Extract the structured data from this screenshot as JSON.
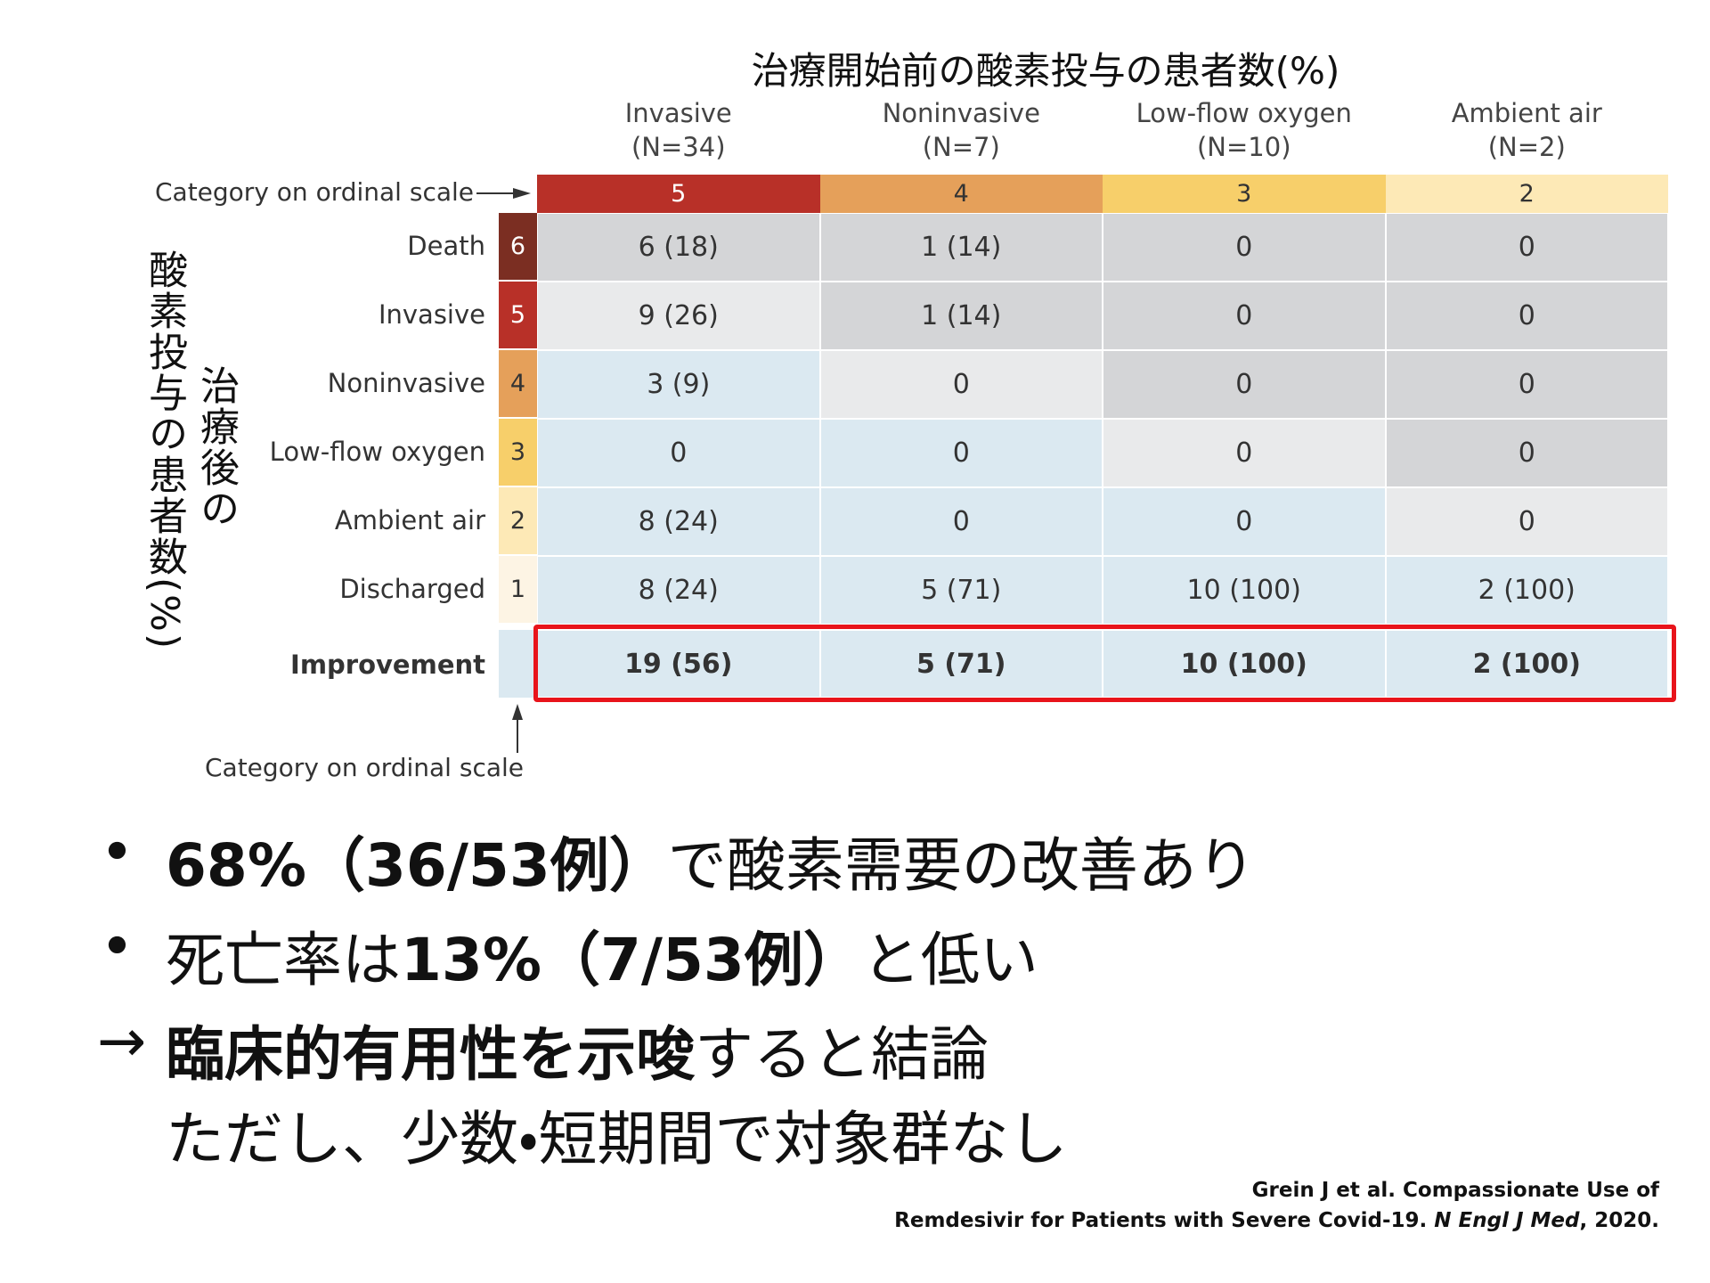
{
  "table": {
    "title": "治療開始前の酸素投与の患者数(%)",
    "column_caption": "Category on ordinal scale",
    "columns": [
      {
        "name": "Invasive",
        "n": "(N=34)",
        "scale": "5"
      },
      {
        "name": "Noninvasive",
        "n": "(N=7)",
        "scale": "4"
      },
      {
        "name": "Low-flow oxygen",
        "n": "(N=10)",
        "scale": "3"
      },
      {
        "name": "Ambient air",
        "n": "(N=2)",
        "scale": "2"
      }
    ],
    "row_title": [
      "酸素投与の患者数(%)",
      "治療後の"
    ],
    "rows": [
      {
        "label": "Death",
        "scale": "6",
        "cells": [
          "6 (18)",
          "1 (14)",
          "0",
          "0"
        ]
      },
      {
        "label": "Invasive",
        "scale": "5",
        "cells": [
          "9 (26)",
          "1 (14)",
          "0",
          "0"
        ]
      },
      {
        "label": "Noninvasive",
        "scale": "4",
        "cells": [
          "3 (9)",
          "0",
          "0",
          "0"
        ]
      },
      {
        "label": "Low-flow oxygen",
        "scale": "3",
        "cells": [
          "0",
          "0",
          "0",
          "0"
        ]
      },
      {
        "label": "Ambient air",
        "scale": "2",
        "cells": [
          "8 (24)",
          "0",
          "0",
          "0"
        ]
      },
      {
        "label": "Discharged",
        "scale": "1",
        "cells": [
          "8 (24)",
          "5 (71)",
          "10 (100)",
          "2 (100)"
        ]
      }
    ],
    "improvement": {
      "label": "Improvement",
      "cells": [
        "19 (56)",
        "5 (71)",
        "10 (100)",
        "2 (100)"
      ]
    },
    "row_caption": "Category on ordinal scale"
  },
  "bullets": [
    {
      "marker": "•",
      "segments": [
        {
          "text": "68%（36/53例）",
          "bold": true
        },
        {
          "text": "で酸素需要の改善あり"
        }
      ]
    },
    {
      "marker": "•",
      "segments": [
        {
          "text": "死亡率は"
        },
        {
          "text": "13%（7/53例）",
          "bold": true
        },
        {
          "text": "と低い"
        }
      ]
    },
    {
      "marker": "→",
      "segments": [
        {
          "text": "臨床的有用性を示唆",
          "bold": true
        },
        {
          "text": "すると結論"
        }
      ]
    },
    {
      "segments": [
        {
          "text": "ただし、少数・短期間で対象群なし"
        }
      ]
    }
  ],
  "citation": {
    "lines": [
      [
        {
          "text": "Grein J et al. Compassionate Use of"
        }
      ],
      [
        {
          "text": "Remdesivir for Patients with Severe Covid-19. "
        },
        {
          "text": "N Engl J Med",
          "italic": true
        },
        {
          "text": ", 2020."
        }
      ]
    ]
  }
}
